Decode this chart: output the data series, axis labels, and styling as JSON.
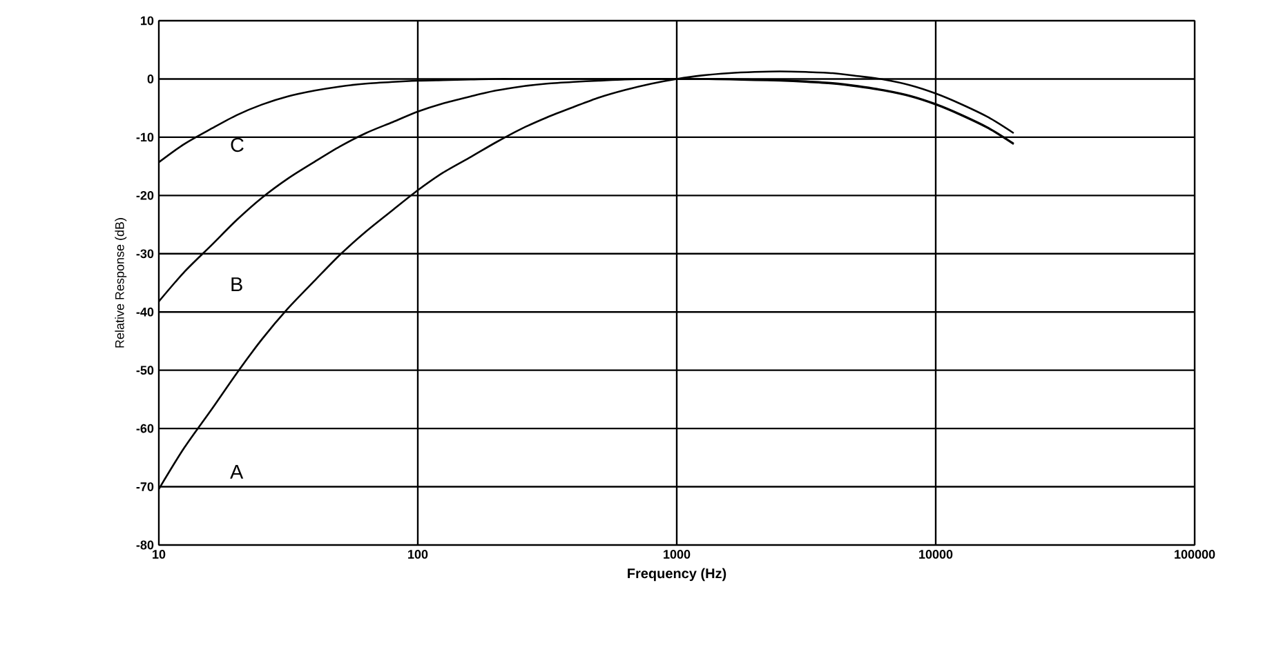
{
  "chart_data": {
    "type": "line",
    "xlabel": "Frequency (Hz)",
    "ylabel": "Relative Response (dB)",
    "log": "x",
    "grid": true,
    "legend": false,
    "marker": "none",
    "line_style": "solid",
    "xlim": [
      10,
      100000
    ],
    "xticks": [
      10,
      100,
      1000,
      10000,
      100000
    ],
    "ylim": [
      -80,
      10
    ],
    "yticks": [
      10,
      0,
      -10,
      -20,
      -30,
      -40,
      -50,
      -60,
      -70,
      -80
    ],
    "x": [
      10,
      12.5,
      16,
      20,
      25,
      31.5,
      40,
      50,
      63,
      80,
      100,
      125,
      160,
      200,
      250,
      315,
      400,
      500,
      630,
      800,
      1000,
      1250,
      1600,
      2000,
      2500,
      3150,
      4000,
      5000,
      6300,
      8000,
      10000,
      12500,
      16000,
      20000
    ],
    "series": [
      {
        "name": "A",
        "color": "#000000",
        "values": [
          -70.4,
          -63.4,
          -56.7,
          -50.5,
          -44.7,
          -39.4,
          -34.6,
          -30.2,
          -26.2,
          -22.5,
          -19.1,
          -16.1,
          -13.4,
          -10.9,
          -8.6,
          -6.6,
          -4.8,
          -3.2,
          -1.9,
          -0.8,
          0,
          0.6,
          1.0,
          1.2,
          1.3,
          1.2,
          1.0,
          0.5,
          -0.1,
          -1.1,
          -2.5,
          -4.3,
          -6.6,
          -9.3
        ]
      },
      {
        "name": "B",
        "color": "#000000",
        "values": [
          -38.2,
          -33.2,
          -28.5,
          -24.2,
          -20.4,
          -17.1,
          -14.2,
          -11.6,
          -9.3,
          -7.4,
          -5.6,
          -4.2,
          -3.0,
          -2.0,
          -1.3,
          -0.8,
          -0.5,
          -0.3,
          -0.1,
          0,
          0,
          0,
          0,
          -0.1,
          -0.2,
          -0.4,
          -0.7,
          -1.2,
          -1.9,
          -2.9,
          -4.3,
          -6.1,
          -8.4,
          -11.1
        ]
      },
      {
        "name": "C",
        "color": "#000000",
        "values": [
          -14.3,
          -11.2,
          -8.5,
          -6.2,
          -4.4,
          -3.0,
          -2.0,
          -1.3,
          -0.8,
          -0.5,
          -0.3,
          -0.2,
          -0.1,
          0,
          0,
          0,
          0,
          0,
          0,
          0,
          0,
          0,
          -0.1,
          -0.2,
          -0.3,
          -0.5,
          -0.8,
          -1.3,
          -2.0,
          -3.0,
          -4.4,
          -6.2,
          -8.5,
          -11.2
        ]
      }
    ]
  }
}
